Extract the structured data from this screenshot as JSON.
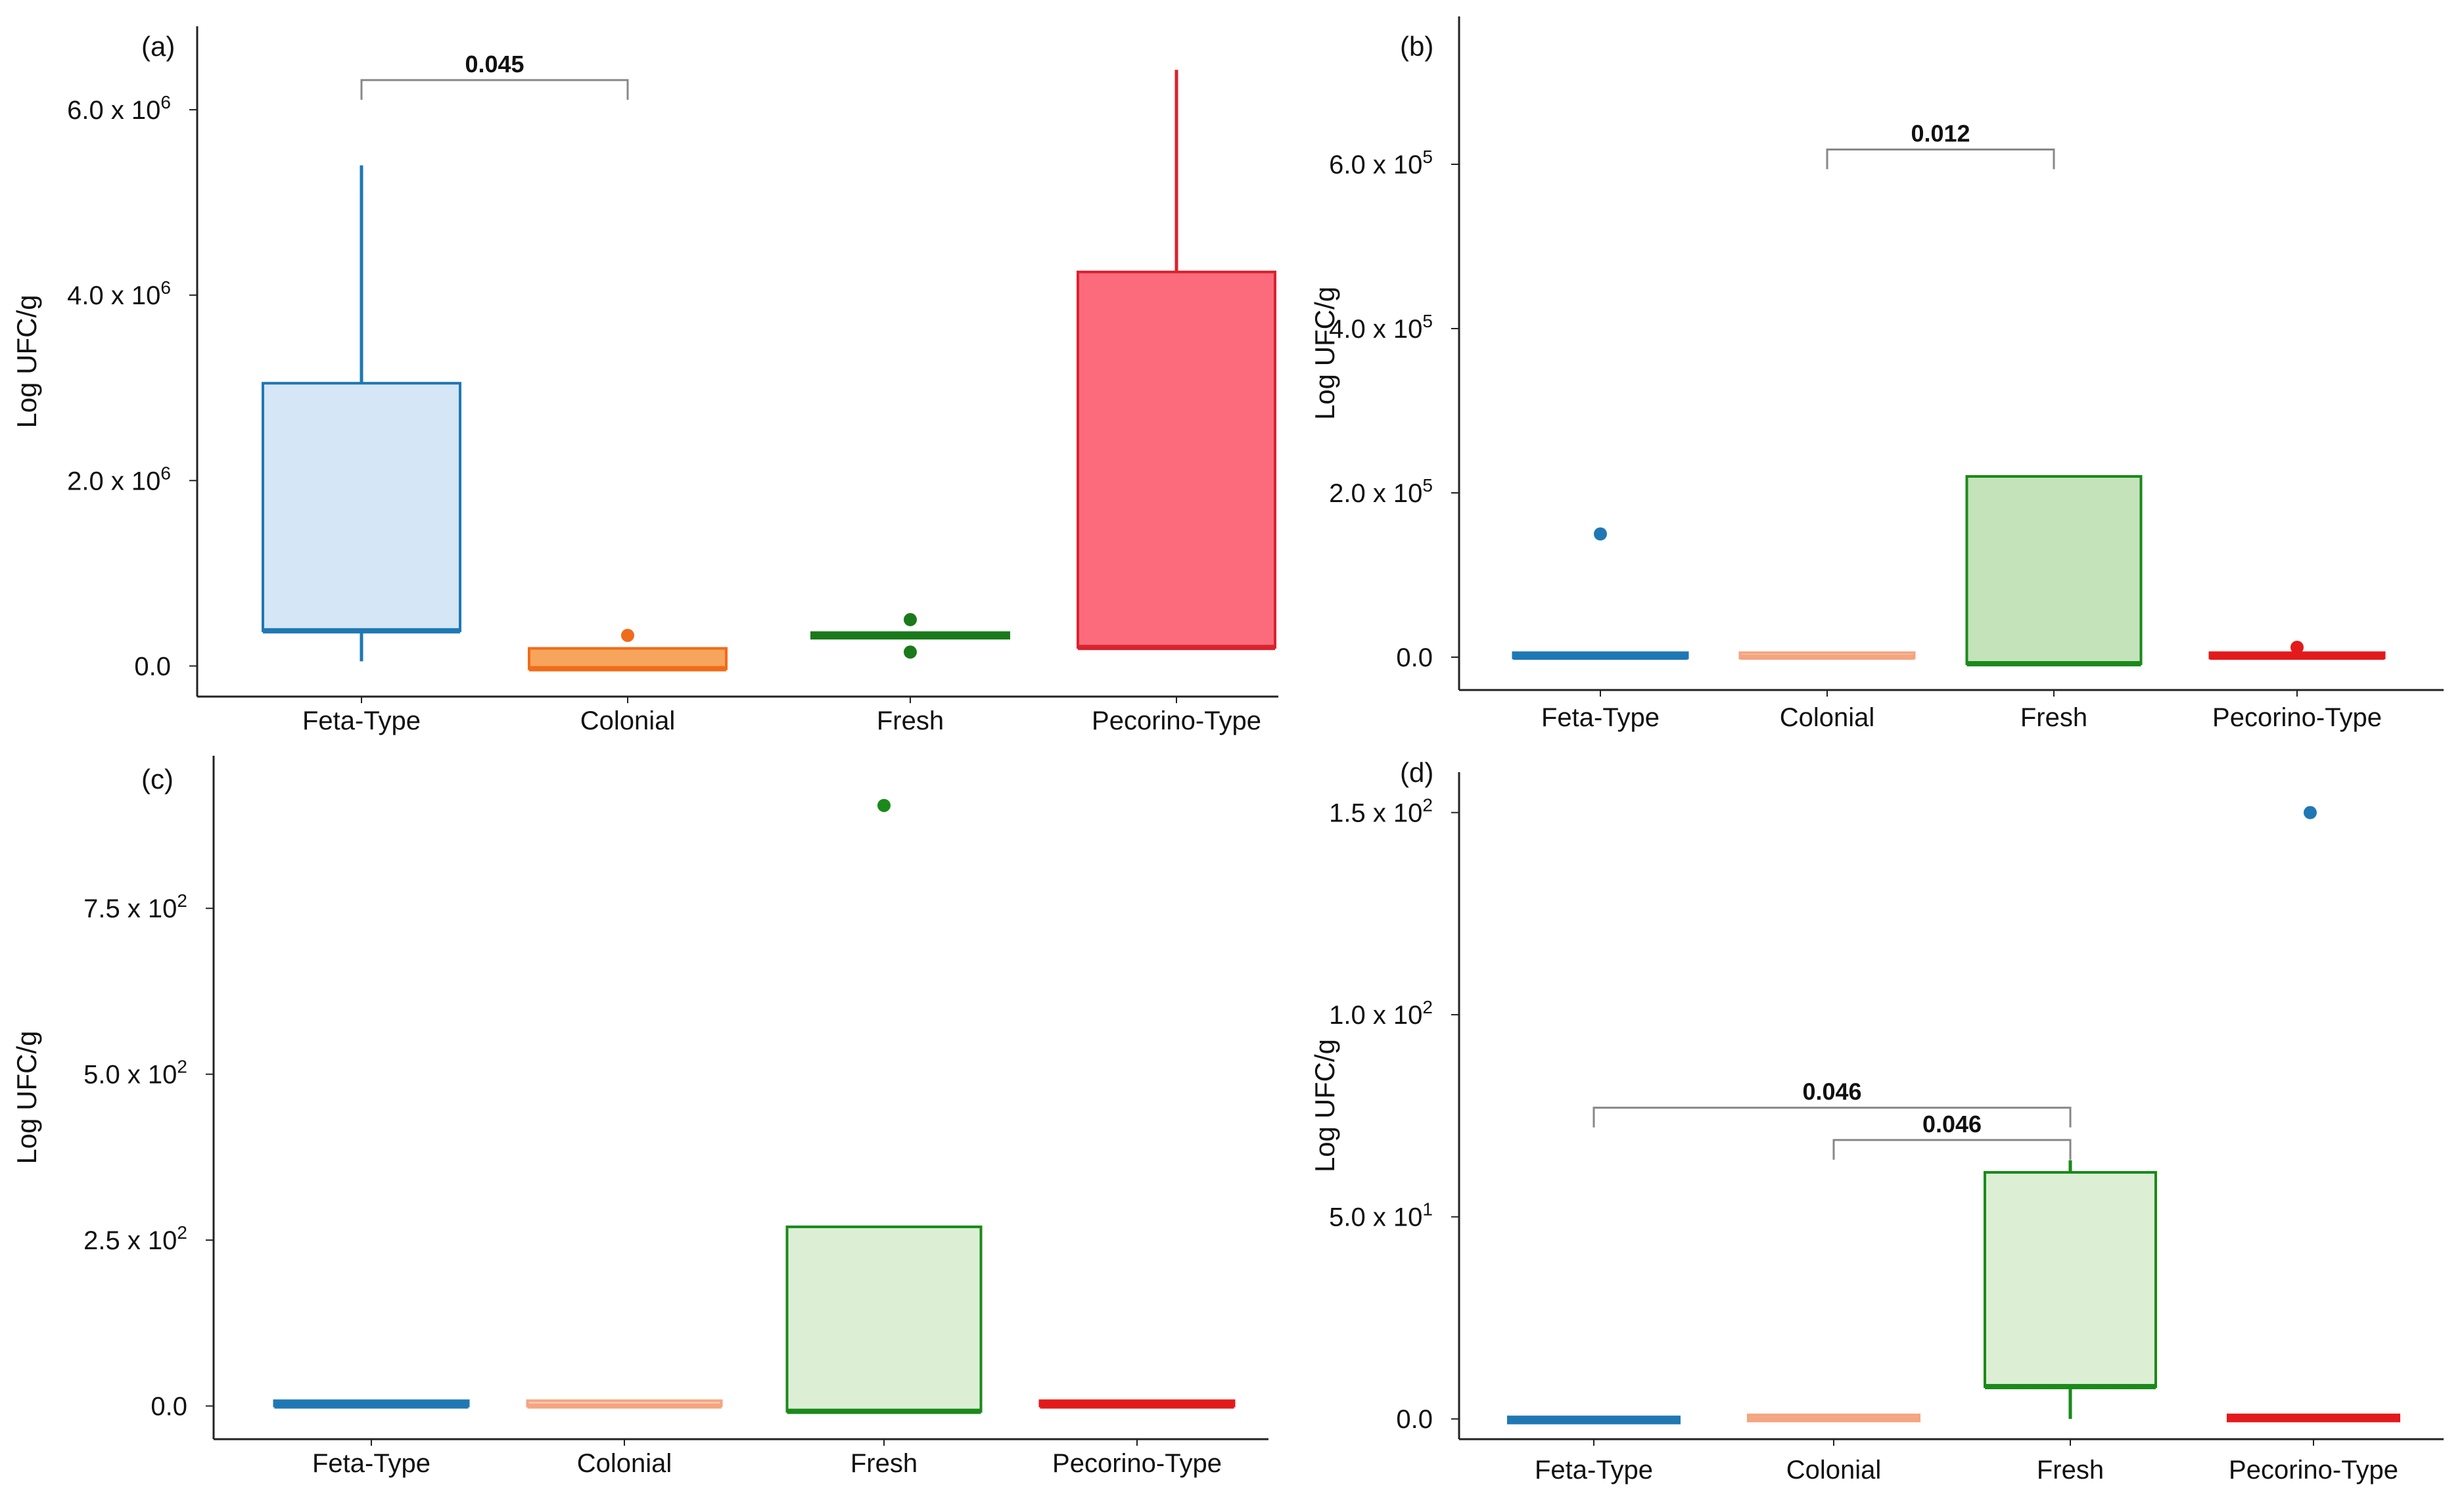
{
  "chart_data": [
    {
      "type": "box",
      "panel": "(a)",
      "ylabel": "Log UFC/g",
      "categories": [
        "Feta-Type",
        "Colonial",
        "Fresh",
        "Pecorino-Type"
      ],
      "ylim": [
        -330000,
        6900000
      ],
      "yticks": [
        {
          "value": 0,
          "base": "0.0",
          "exp": ""
        },
        {
          "value": 2000000,
          "base": "2.0 x 10",
          "exp": "6"
        },
        {
          "value": 4000000,
          "base": "4.0 x 10",
          "exp": "6"
        },
        {
          "value": 6000000,
          "base": "6.0 x 10",
          "exp": "6"
        }
      ],
      "boxes": [
        {
          "category": "Feta-Type",
          "q1": 380000,
          "median": 380000,
          "q3": 3050000,
          "wlow": 50000,
          "whigh": 5400000,
          "outliers": [],
          "fill": "#d5e6f6",
          "stroke": "#1f78b4"
        },
        {
          "category": "Colonial",
          "q1": -30000,
          "median": -30000,
          "q3": 190000,
          "wlow": -30000,
          "whigh": 190000,
          "outliers": [
            330000
          ],
          "fill": "#f7a45c",
          "stroke": "#ef6c1a"
        },
        {
          "category": "Fresh",
          "q1": 300000,
          "median": 330000,
          "q3": 360000,
          "wlow": 300000,
          "whigh": 360000,
          "outliers": [
            150000,
            500000
          ],
          "fill": "#3a9a3a",
          "stroke": "#1a7a1a"
        },
        {
          "category": "Pecorino-Type",
          "q1": 200000,
          "median": 200000,
          "q3": 4250000,
          "wlow": 200000,
          "whigh": 6430000,
          "outliers": [],
          "fill": "#fb6b7c",
          "stroke": "#d9232e"
        }
      ],
      "significance": [
        {
          "from": "Feta-Type",
          "to": "Colonial",
          "label": "0.045",
          "y": 6320000
        }
      ]
    },
    {
      "type": "box",
      "panel": "(b)",
      "ylabel": "Log UFC/g",
      "categories": [
        "Feta-Type",
        "Colonial",
        "Fresh",
        "Pecorino-Type"
      ],
      "ylim": [
        -40000,
        780000
      ],
      "yticks": [
        {
          "value": 0,
          "base": "0.0",
          "exp": ""
        },
        {
          "value": 200000,
          "base": "2.0 x 10",
          "exp": "5"
        },
        {
          "value": 400000,
          "base": "4.0 x 10",
          "exp": "5"
        },
        {
          "value": 600000,
          "base": "6.0 x 10",
          "exp": "5"
        }
      ],
      "boxes": [
        {
          "category": "Feta-Type",
          "q1": -1000,
          "median": 0,
          "q3": 1500,
          "wlow": -1000,
          "whigh": 1500,
          "outliers": [
            150000
          ],
          "fill": "#1f78b4",
          "stroke": "#1f78b4"
        },
        {
          "category": "Colonial",
          "q1": -1000,
          "median": 0,
          "q3": 4000,
          "wlow": -1000,
          "whigh": 4000,
          "outliers": [],
          "fill": "#fcd2b4",
          "stroke": "#f4a582"
        },
        {
          "category": "Fresh",
          "q1": -8000,
          "median": -8000,
          "q3": 220000,
          "wlow": -8000,
          "whigh": 220000,
          "outliers": [],
          "fill": "#c5e3bb",
          "stroke": "#1a8a1a"
        },
        {
          "category": "Pecorino-Type",
          "q1": -1000,
          "median": 0,
          "q3": 1500,
          "wlow": -1000,
          "whigh": 1500,
          "outliers": [
            12000
          ],
          "fill": "#e31a1c",
          "stroke": "#e31a1c"
        }
      ],
      "significance": [
        {
          "from": "Colonial",
          "to": "Fresh",
          "label": "0.012",
          "y": 618000
        }
      ]
    },
    {
      "type": "box",
      "panel": "(c)",
      "ylabel": "Log UFC/g",
      "categories": [
        "Feta-Type",
        "Colonial",
        "Fresh",
        "Pecorino-Type"
      ],
      "ylim": [
        -50,
        980
      ],
      "yticks": [
        {
          "value": 0,
          "base": "0.0",
          "exp": ""
        },
        {
          "value": 250,
          "base": "2.5 x 10",
          "exp": "2"
        },
        {
          "value": 500,
          "base": "5.0 x 10",
          "exp": "2"
        },
        {
          "value": 750,
          "base": "7.5 x 10",
          "exp": "2"
        }
      ],
      "boxes": [
        {
          "category": "Feta-Type",
          "q1": 0,
          "median": 0,
          "q3": 4,
          "wlow": 0,
          "whigh": 4,
          "outliers": [],
          "fill": "#1f78b4",
          "stroke": "#1f78b4"
        },
        {
          "category": "Colonial",
          "q1": 0,
          "median": 0,
          "q3": 4,
          "wlow": 0,
          "whigh": 4,
          "outliers": [],
          "fill": "#fcd2b4",
          "stroke": "#f4a582"
        },
        {
          "category": "Fresh",
          "q1": -8,
          "median": -8,
          "q3": 270,
          "wlow": -8,
          "whigh": 270,
          "outliers": [
            905
          ],
          "fill": "#dcefd5",
          "stroke": "#1a8a1a"
        },
        {
          "category": "Pecorino-Type",
          "q1": 0,
          "median": 0,
          "q3": 4,
          "wlow": 0,
          "whigh": 4,
          "outliers": [],
          "fill": "#e31a1c",
          "stroke": "#e31a1c"
        }
      ],
      "significance": []
    },
    {
      "type": "box",
      "panel": "(d)",
      "ylabel": "Log UFC/g",
      "categories": [
        "Feta-Type",
        "Colonial",
        "Fresh",
        "Pecorino-Type"
      ],
      "ylim": [
        -5,
        160
      ],
      "yticks": [
        {
          "value": 0,
          "base": "0.0",
          "exp": ""
        },
        {
          "value": 50,
          "base": "5.0 x 10",
          "exp": "1"
        },
        {
          "value": 100,
          "base": "1.0 x 10",
          "exp": "2"
        },
        {
          "value": 150,
          "base": "1.5 x 10",
          "exp": "2"
        }
      ],
      "boxes": [
        {
          "category": "Feta-Type",
          "q1": -1,
          "median": 0,
          "q3": 0.5,
          "wlow": -1,
          "whigh": 0.5,
          "outliers": [],
          "fill": "#1f78b4",
          "stroke": "#1f78b4"
        },
        {
          "category": "Colonial",
          "q1": -0.5,
          "median": 0,
          "q3": 1,
          "wlow": -0.5,
          "whigh": 1,
          "outliers": [],
          "fill": "#fcd2b4",
          "stroke": "#f4a582"
        },
        {
          "category": "Fresh",
          "q1": 8,
          "median": 8,
          "q3": 61,
          "wlow": 0,
          "whigh": 64,
          "outliers": [],
          "fill": "#dcefd5",
          "stroke": "#1a8a1a"
        },
        {
          "category": "Pecorino-Type",
          "q1": -0.5,
          "median": 0,
          "q3": 1,
          "wlow": -0.5,
          "whigh": 1,
          "outliers": [],
          "fill": "#e31a1c",
          "stroke": "#e31a1c"
        }
      ],
      "outliers_extra": [],
      "significance": [
        {
          "from": "Feta-Type",
          "to": "Fresh",
          "label": "0.046",
          "y": 77
        },
        {
          "from": "Colonial",
          "to": "Fresh",
          "label": "0.046",
          "y": 69
        }
      ],
      "pecorino_outlier": [
        150
      ]
    }
  ]
}
